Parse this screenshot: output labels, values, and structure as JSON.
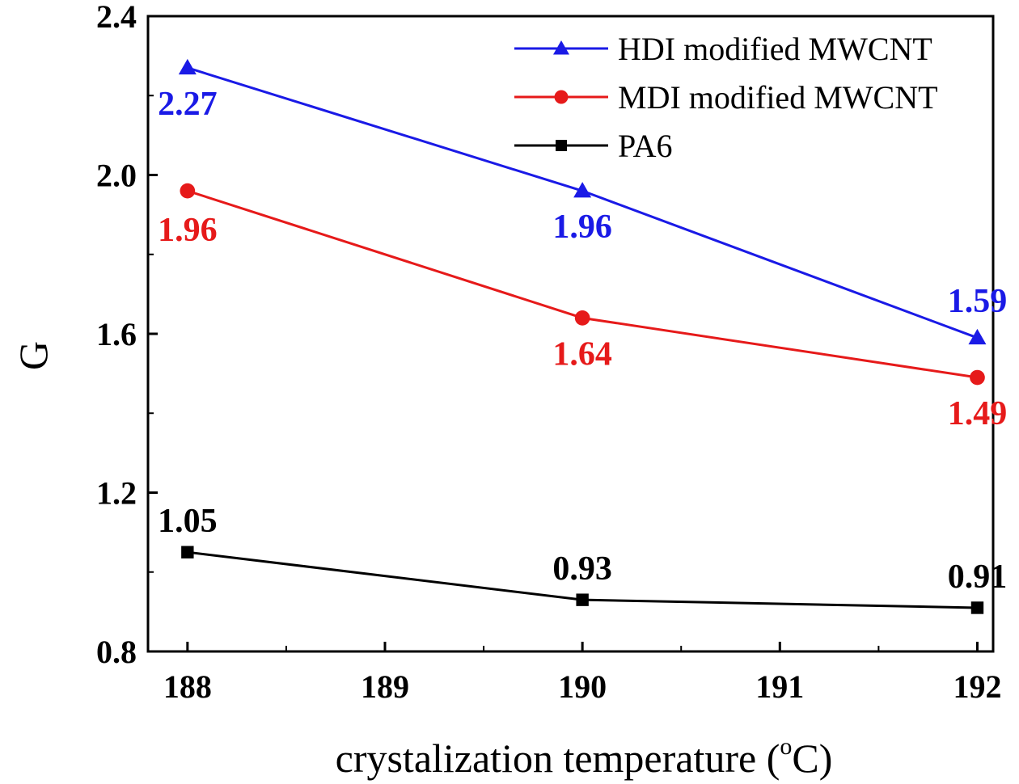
{
  "chart_data": {
    "type": "line",
    "title": "",
    "xlabel": "crystalization temperature (",
    "xlabel_sup": "o",
    "xlabel_unit": "C)",
    "ylabel": "G",
    "xlim": [
      187.8,
      192.08
    ],
    "ylim": [
      0.8,
      2.4
    ],
    "x_ticks": [
      "188",
      "189",
      "190",
      "191",
      "192"
    ],
    "y_ticks": [
      "0.8",
      "1.2",
      "1.6",
      "2.0",
      "2.4"
    ],
    "x": [
      188,
      190,
      192
    ],
    "legend_position": "top-right",
    "series": [
      {
        "name": "HDI modified MWCNT",
        "color": "#1a1ae6",
        "marker": "triangle",
        "values": [
          2.27,
          1.96,
          1.59
        ],
        "labels": [
          "2.27",
          "1.96",
          "1.59"
        ]
      },
      {
        "name": "MDI modified MWCNT",
        "color": "#e61a1a",
        "marker": "circle",
        "values": [
          1.96,
          1.64,
          1.49
        ],
        "labels": [
          "1.96",
          "1.64",
          "1.49"
        ]
      },
      {
        "name": "PA6",
        "color": "#000000",
        "marker": "square",
        "values": [
          1.05,
          0.93,
          0.91
        ],
        "labels": [
          "1.05",
          "0.93",
          "0.91"
        ]
      }
    ]
  }
}
